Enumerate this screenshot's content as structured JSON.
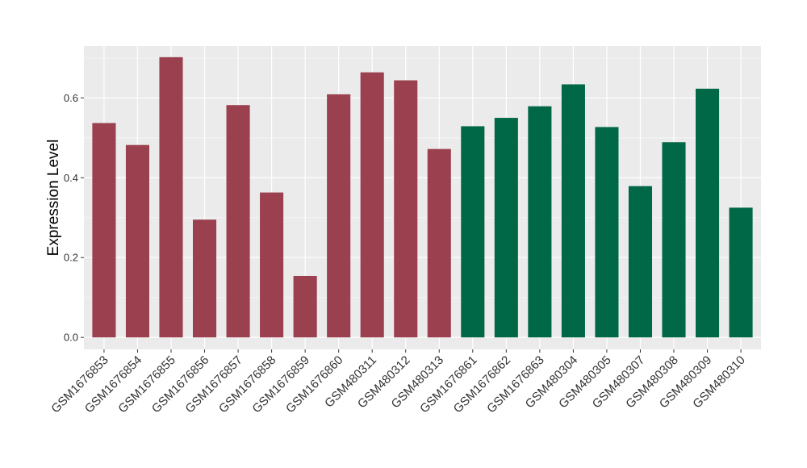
{
  "chart_data": {
    "type": "bar",
    "title": "",
    "xlabel": "",
    "ylabel": "Expression Level",
    "ylim": [
      -0.03,
      0.73
    ],
    "yticks": [
      0.0,
      0.2,
      0.4,
      0.6
    ],
    "ytick_labels": [
      "0.0",
      "0.2",
      "0.4",
      "0.6"
    ],
    "grid": true,
    "legend": "none",
    "categories": [
      "GSM1676853",
      "GSM1676854",
      "GSM1676855",
      "GSM1676856",
      "GSM1676857",
      "GSM1676858",
      "GSM1676859",
      "GSM1676860",
      "GSM480311",
      "GSM480312",
      "GSM480313",
      "GSM1676861",
      "GSM1676862",
      "GSM1676863",
      "GSM480304",
      "GSM480305",
      "GSM480307",
      "GSM480308",
      "GSM480309",
      "GSM480310"
    ],
    "values": [
      0.537,
      0.482,
      0.702,
      0.295,
      0.582,
      0.363,
      0.154,
      0.609,
      0.664,
      0.644,
      0.472,
      0.529,
      0.55,
      0.579,
      0.634,
      0.527,
      0.379,
      0.489,
      0.623,
      0.325
    ],
    "bar_colors": [
      "#9a404f",
      "#9a404f",
      "#9a404f",
      "#9a404f",
      "#9a404f",
      "#9a404f",
      "#9a404f",
      "#9a404f",
      "#9a404f",
      "#9a404f",
      "#9a404f",
      "#006747",
      "#006747",
      "#006747",
      "#006747",
      "#006747",
      "#006747",
      "#006747",
      "#006747",
      "#006747"
    ],
    "colors": {
      "panel_background": "#ebebeb",
      "grid_major": "#ffffff",
      "grid_minor": "#f5f5f5",
      "tick_mark": "#333333"
    }
  }
}
